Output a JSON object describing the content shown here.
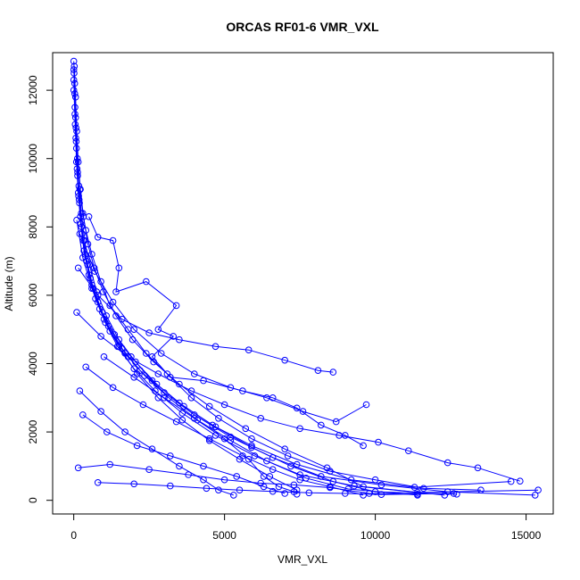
{
  "chart_data": {
    "type": "line",
    "title": "ORCAS RF01-6 VMR_VXL",
    "xlabel": "VMR_VXL",
    "ylabel": "Altitude (m)",
    "xlim": [
      -700,
      15900
    ],
    "ylim": [
      -400,
      13100
    ],
    "xticks": [
      0,
      5000,
      10000,
      15000
    ],
    "yticks": [
      0,
      2000,
      4000,
      6000,
      8000,
      10000,
      12000
    ],
    "grid": false,
    "legend": "none",
    "series_color": "#0000ff",
    "marker": "open-circle",
    "series": [
      {
        "values": [
          [
            0,
            12850
          ],
          [
            30,
            12200
          ],
          [
            60,
            11200
          ],
          [
            90,
            10300
          ],
          [
            130,
            9500
          ],
          [
            180,
            8800
          ],
          [
            260,
            8000
          ],
          [
            380,
            7200
          ],
          [
            550,
            6500
          ],
          [
            800,
            5800
          ],
          [
            1150,
            5100
          ],
          [
            1600,
            4450
          ],
          [
            2200,
            3800
          ],
          [
            3000,
            3150
          ],
          [
            4000,
            2500
          ],
          [
            5200,
            1850
          ],
          [
            6600,
            1250
          ],
          [
            8200,
            700
          ],
          [
            10200,
            450
          ],
          [
            12400,
            250
          ],
          [
            15300,
            150
          ]
        ]
      },
      {
        "values": [
          [
            10,
            12500
          ],
          [
            40,
            11500
          ],
          [
            70,
            10600
          ],
          [
            110,
            9700
          ],
          [
            160,
            8900
          ],
          [
            230,
            8100
          ],
          [
            340,
            7300
          ],
          [
            500,
            6600
          ],
          [
            720,
            5900
          ],
          [
            1050,
            5200
          ],
          [
            1450,
            4500
          ],
          [
            2000,
            3850
          ],
          [
            2700,
            3200
          ],
          [
            3600,
            2550
          ],
          [
            4700,
            1900
          ],
          [
            6000,
            1300
          ],
          [
            7500,
            750
          ],
          [
            9300,
            420
          ],
          [
            11400,
            230
          ],
          [
            15400,
            300
          ]
        ]
      },
      {
        "values": [
          [
            0,
            12300
          ],
          [
            50,
            11000
          ],
          [
            90,
            9900
          ],
          [
            150,
            9000
          ],
          [
            220,
            8300
          ],
          [
            320,
            7600
          ],
          [
            460,
            6900
          ],
          [
            650,
            6200
          ],
          [
            950,
            5500
          ],
          [
            1350,
            4850
          ],
          [
            1900,
            4200
          ],
          [
            2600,
            3500
          ],
          [
            3500,
            2850
          ],
          [
            4600,
            2200
          ],
          [
            5900,
            1600
          ],
          [
            7400,
            1050
          ],
          [
            9200,
            600
          ],
          [
            11300,
            380
          ],
          [
            14500,
            550
          ]
        ]
      },
      {
        "values": [
          [
            20,
            12700
          ],
          [
            60,
            11800
          ],
          [
            100,
            10800
          ],
          [
            150,
            9900
          ],
          [
            220,
            9100
          ],
          [
            320,
            8300
          ],
          [
            470,
            7500
          ],
          [
            680,
            6800
          ],
          [
            980,
            6100
          ],
          [
            1400,
            5400
          ],
          [
            1950,
            4700
          ],
          [
            2650,
            4050
          ],
          [
            3500,
            3400
          ],
          [
            4500,
            2750
          ],
          [
            5700,
            2100
          ],
          [
            7000,
            1500
          ],
          [
            8400,
            950
          ],
          [
            9600,
            400
          ],
          [
            12300,
            150
          ]
        ]
      },
      {
        "values": [
          [
            100,
            8200
          ],
          [
            300,
            7100
          ],
          [
            600,
            6200
          ],
          [
            1000,
            5300
          ],
          [
            1500,
            4500
          ],
          [
            2100,
            3700
          ],
          [
            2800,
            3000
          ],
          [
            3600,
            2350
          ],
          [
            4500,
            1750
          ],
          [
            5500,
            1200
          ],
          [
            6500,
            700
          ],
          [
            7400,
            300
          ],
          [
            7400,
            180
          ]
        ]
      },
      {
        "values": [
          [
            200,
            7800
          ],
          [
            700,
            6700
          ],
          [
            1300,
            5800
          ],
          [
            2000,
            5000
          ],
          [
            2900,
            4300
          ],
          [
            4000,
            3700
          ],
          [
            5200,
            3300
          ],
          [
            6400,
            3000
          ],
          [
            7600,
            2600
          ],
          [
            8700,
            2300
          ],
          [
            9700,
            2800
          ]
        ]
      },
      {
        "values": [
          [
            150,
            6800
          ],
          [
            800,
            6000
          ],
          [
            1600,
            5300
          ],
          [
            2500,
            4900
          ],
          [
            3500,
            4700
          ],
          [
            4700,
            4500
          ],
          [
            5800,
            4400
          ],
          [
            7000,
            4100
          ],
          [
            8100,
            3800
          ],
          [
            8600,
            3750
          ]
        ]
      },
      {
        "values": [
          [
            100,
            5500
          ],
          [
            900,
            4800
          ],
          [
            1800,
            4200
          ],
          [
            2800,
            3700
          ],
          [
            3900,
            3200
          ],
          [
            5000,
            2800
          ],
          [
            6200,
            2400
          ],
          [
            7500,
            2100
          ],
          [
            8800,
            1900
          ],
          [
            10100,
            1700
          ],
          [
            11100,
            1450
          ],
          [
            12400,
            1100
          ],
          [
            13400,
            950
          ],
          [
            14800,
            560
          ]
        ]
      },
      {
        "values": [
          [
            1000,
            4200
          ],
          [
            2000,
            3600
          ],
          [
            3000,
            3000
          ],
          [
            4000,
            2400
          ],
          [
            5000,
            1800
          ],
          [
            5800,
            1200
          ],
          [
            6300,
            700
          ],
          [
            6800,
            400
          ],
          [
            7300,
            250
          ]
        ]
      },
      {
        "values": [
          [
            400,
            3900
          ],
          [
            1300,
            3300
          ],
          [
            2300,
            2800
          ],
          [
            3400,
            2300
          ],
          [
            4500,
            1800
          ],
          [
            5600,
            1300
          ],
          [
            6600,
            900
          ],
          [
            7500,
            600
          ],
          [
            8500,
            400
          ],
          [
            9600,
            150
          ]
        ]
      },
      {
        "values": [
          [
            200,
            3200
          ],
          [
            900,
            2600
          ],
          [
            1700,
            2000
          ],
          [
            2600,
            1500
          ],
          [
            3500,
            1000
          ],
          [
            4300,
            600
          ],
          [
            4800,
            300
          ],
          [
            5300,
            150
          ]
        ]
      },
      {
        "values": [
          [
            300,
            2500
          ],
          [
            1100,
            2000
          ],
          [
            2100,
            1600
          ],
          [
            3200,
            1300
          ],
          [
            4300,
            1000
          ],
          [
            5400,
            700
          ],
          [
            6300,
            400
          ],
          [
            7000,
            200
          ]
        ]
      },
      {
        "values": [
          [
            150,
            950
          ],
          [
            1200,
            1050
          ],
          [
            2500,
            900
          ],
          [
            3800,
            750
          ],
          [
            5000,
            600
          ],
          [
            6200,
            500
          ],
          [
            7300,
            450
          ],
          [
            8500,
            370
          ],
          [
            9800,
            200
          ],
          [
            11400,
            180
          ]
        ]
      },
      {
        "values": [
          [
            800,
            520
          ],
          [
            2000,
            480
          ],
          [
            3200,
            420
          ],
          [
            4400,
            350
          ],
          [
            5500,
            300
          ],
          [
            6600,
            260
          ],
          [
            7800,
            220
          ],
          [
            9000,
            200
          ],
          [
            10200,
            170
          ],
          [
            12600,
            200
          ]
        ]
      },
      {
        "values": [
          [
            500,
            8300
          ],
          [
            800,
            7700
          ],
          [
            1300,
            7600
          ],
          [
            1500,
            6800
          ],
          [
            1400,
            6100
          ],
          [
            2400,
            6400
          ],
          [
            3400,
            5700
          ],
          [
            2800,
            5000
          ],
          [
            3300,
            4800
          ],
          [
            2600,
            4200
          ],
          [
            3200,
            3600
          ],
          [
            4300,
            3500
          ],
          [
            5600,
            3200
          ],
          [
            6600,
            3000
          ],
          [
            7400,
            2700
          ],
          [
            8200,
            2200
          ],
          [
            9000,
            1900
          ],
          [
            9600,
            1600
          ]
        ]
      },
      {
        "values": [
          [
            200,
            9100
          ],
          [
            300,
            8400
          ],
          [
            400,
            7900
          ],
          [
            600,
            7200
          ],
          [
            900,
            6400
          ],
          [
            1200,
            5700
          ],
          [
            1800,
            5000
          ],
          [
            2400,
            4300
          ],
          [
            3100,
            3700
          ],
          [
            3900,
            3000
          ],
          [
            4800,
            2400
          ],
          [
            5900,
            1800
          ],
          [
            7100,
            1300
          ],
          [
            8500,
            850
          ],
          [
            10000,
            600
          ],
          [
            11600,
            350
          ],
          [
            13500,
            300
          ]
        ]
      },
      {
        "values": [
          [
            0,
            12000
          ],
          [
            40,
            11300
          ],
          [
            80,
            10500
          ],
          [
            130,
            9600
          ],
          [
            190,
            8700
          ],
          [
            280,
            7800
          ],
          [
            420,
            7000
          ],
          [
            600,
            6300
          ],
          [
            860,
            5600
          ],
          [
            1200,
            4950
          ],
          [
            1700,
            4300
          ],
          [
            2350,
            3650
          ],
          [
            3150,
            3000
          ],
          [
            4100,
            2350
          ],
          [
            5200,
            1750
          ],
          [
            6400,
            1150
          ],
          [
            7700,
            650
          ],
          [
            9100,
            330
          ],
          [
            11400,
            150
          ]
        ]
      },
      {
        "values": [
          [
            0,
            12600
          ],
          [
            35,
            11900
          ],
          [
            75,
            10900
          ],
          [
            120,
            10000
          ],
          [
            170,
            9200
          ],
          [
            250,
            8400
          ],
          [
            360,
            7600
          ],
          [
            520,
            6900
          ],
          [
            760,
            6100
          ],
          [
            1080,
            5400
          ],
          [
            1500,
            4700
          ],
          [
            2050,
            4050
          ],
          [
            2750,
            3400
          ],
          [
            3650,
            2750
          ],
          [
            4700,
            2150
          ],
          [
            5900,
            1550
          ],
          [
            7200,
            1000
          ],
          [
            8600,
            550
          ],
          [
            10000,
            250
          ],
          [
            12700,
            180
          ]
        ]
      }
    ]
  }
}
